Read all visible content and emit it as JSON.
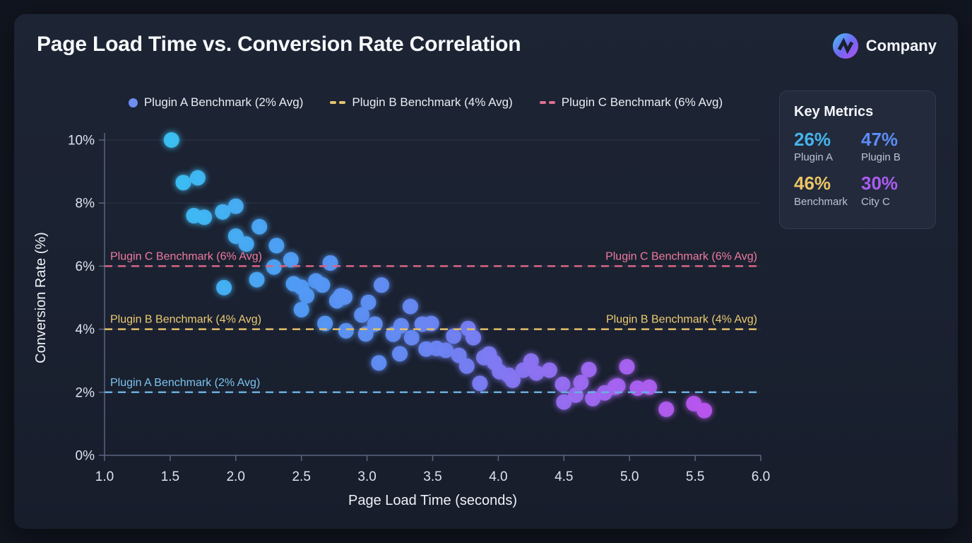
{
  "header": {
    "title": "Page Load Time vs. Conversion Rate Correlation",
    "brand": "Company"
  },
  "legend": {
    "items": [
      {
        "label": "Plugin A Benchmark (2% Avg)",
        "marker": "dot",
        "color": "#6e8ef2"
      },
      {
        "label": "Plugin B Benchmark (4% Avg)",
        "marker": "dash",
        "color": "#e6c46e"
      },
      {
        "label": "Plugin C Benchmark (6% Avg)",
        "marker": "dash",
        "color": "#e2708e"
      }
    ]
  },
  "key_metrics": {
    "title": "Key Metrics",
    "items": [
      {
        "value": "26%",
        "label": "Plugin A",
        "color": "#45b3ea"
      },
      {
        "value": "47%",
        "label": "Plugin B",
        "color": "#5c8cf5"
      },
      {
        "value": "46%",
        "label": "Benchmark",
        "color": "#ecc565"
      },
      {
        "value": "30%",
        "label": "City C",
        "color": "#ab5cf0"
      }
    ]
  },
  "chart_data": {
    "type": "scatter",
    "title": "Page Load Time vs. Conversion Rate Correlation",
    "xlabel": "Page Load Time (seconds)",
    "ylabel": "Conversion Rate (%)",
    "xlim": [
      1,
      6
    ],
    "ylim": [
      0,
      10
    ],
    "x_ticks": [
      1.0,
      1.5,
      2.0,
      2.5,
      3.0,
      3.5,
      4.0,
      4.5,
      5.0,
      5.5,
      6.0
    ],
    "x_tick_labels": [
      "1.0",
      "1.5",
      "2.0",
      "2.5",
      "3.0",
      "3.5",
      "4.0",
      "4.5",
      "5.0",
      "5.5",
      "6.0"
    ],
    "y_ticks": [
      0,
      2,
      4,
      6,
      8,
      10
    ],
    "y_tick_labels": [
      "0%",
      "2%",
      "4%",
      "6%",
      "8%",
      "10%"
    ],
    "grid": "horizontal",
    "legend_position": "top",
    "point_color_stops": [
      "#3cc1f5",
      "#539af5",
      "#6d85f3",
      "#9a6cf2",
      "#bb55ef"
    ],
    "point_color_domain": [
      1.5,
      5.6
    ],
    "points": [
      [
        1.51,
        10.0
      ],
      [
        1.6,
        8.65
      ],
      [
        1.71,
        8.8
      ],
      [
        1.68,
        7.6
      ],
      [
        1.76,
        7.55
      ],
      [
        1.9,
        7.72
      ],
      [
        2.0,
        7.9
      ],
      [
        2.18,
        7.25
      ],
      [
        2.0,
        6.95
      ],
      [
        2.08,
        6.7
      ],
      [
        2.31,
        6.65
      ],
      [
        2.42,
        6.2
      ],
      [
        2.29,
        5.97
      ],
      [
        2.72,
        6.1
      ],
      [
        1.91,
        5.32
      ],
      [
        2.16,
        5.57
      ],
      [
        2.44,
        5.44
      ],
      [
        2.5,
        5.33
      ],
      [
        2.61,
        5.53
      ],
      [
        2.66,
        5.4
      ],
      [
        2.54,
        5.06
      ],
      [
        2.8,
        5.06
      ],
      [
        2.77,
        4.9
      ],
      [
        2.83,
        5.02
      ],
      [
        2.5,
        4.62
      ],
      [
        3.01,
        4.85
      ],
      [
        3.11,
        5.4
      ],
      [
        2.96,
        4.45
      ],
      [
        2.68,
        4.18
      ],
      [
        2.84,
        3.95
      ],
      [
        2.99,
        3.85
      ],
      [
        3.06,
        4.16
      ],
      [
        3.26,
        4.11
      ],
      [
        3.2,
        3.84
      ],
      [
        3.33,
        4.72
      ],
      [
        3.09,
        2.93
      ],
      [
        3.25,
        3.22
      ],
      [
        3.34,
        3.73
      ],
      [
        3.42,
        4.16
      ],
      [
        3.49,
        4.18
      ],
      [
        3.45,
        3.37
      ],
      [
        3.53,
        3.39
      ],
      [
        3.6,
        3.33
      ],
      [
        3.66,
        3.78
      ],
      [
        3.77,
        4.02
      ],
      [
        3.7,
        3.17
      ],
      [
        3.76,
        2.83
      ],
      [
        3.81,
        3.73
      ],
      [
        3.89,
        3.1
      ],
      [
        3.93,
        3.21
      ],
      [
        3.97,
        2.94
      ],
      [
        4.01,
        2.65
      ],
      [
        3.86,
        2.28
      ],
      [
        4.08,
        2.54
      ],
      [
        4.11,
        2.38
      ],
      [
        4.19,
        2.7
      ],
      [
        4.25,
        2.99
      ],
      [
        4.29,
        2.61
      ],
      [
        4.39,
        2.7
      ],
      [
        4.49,
        2.25
      ],
      [
        4.5,
        1.69
      ],
      [
        4.59,
        1.91
      ],
      [
        4.63,
        2.31
      ],
      [
        4.69,
        2.72
      ],
      [
        4.72,
        1.8
      ],
      [
        4.81,
        1.98
      ],
      [
        4.89,
        2.16
      ],
      [
        4.91,
        2.2
      ],
      [
        4.98,
        2.81
      ],
      [
        5.06,
        2.13
      ],
      [
        5.15,
        2.16
      ],
      [
        5.28,
        1.46
      ],
      [
        5.49,
        1.64
      ],
      [
        5.57,
        1.42
      ]
    ],
    "benchmarks": [
      {
        "value": 2,
        "label": "Plugin A Benchmark (2% Avg)",
        "line_color": "#69aede",
        "label_color": "#7cc4ee",
        "sides": [
          "left"
        ]
      },
      {
        "value": 4,
        "label": "Plugin B Benchmark (4% Avg)",
        "line_color": "#e3c06a",
        "label_color": "#ecca74",
        "sides": [
          "left",
          "right"
        ]
      },
      {
        "value": 6,
        "label": "Plugin C Benchmark (6% Avg)",
        "line_color": "#d96585",
        "label_color": "#ee7a9e",
        "sides": [
          "left",
          "right"
        ]
      }
    ]
  }
}
